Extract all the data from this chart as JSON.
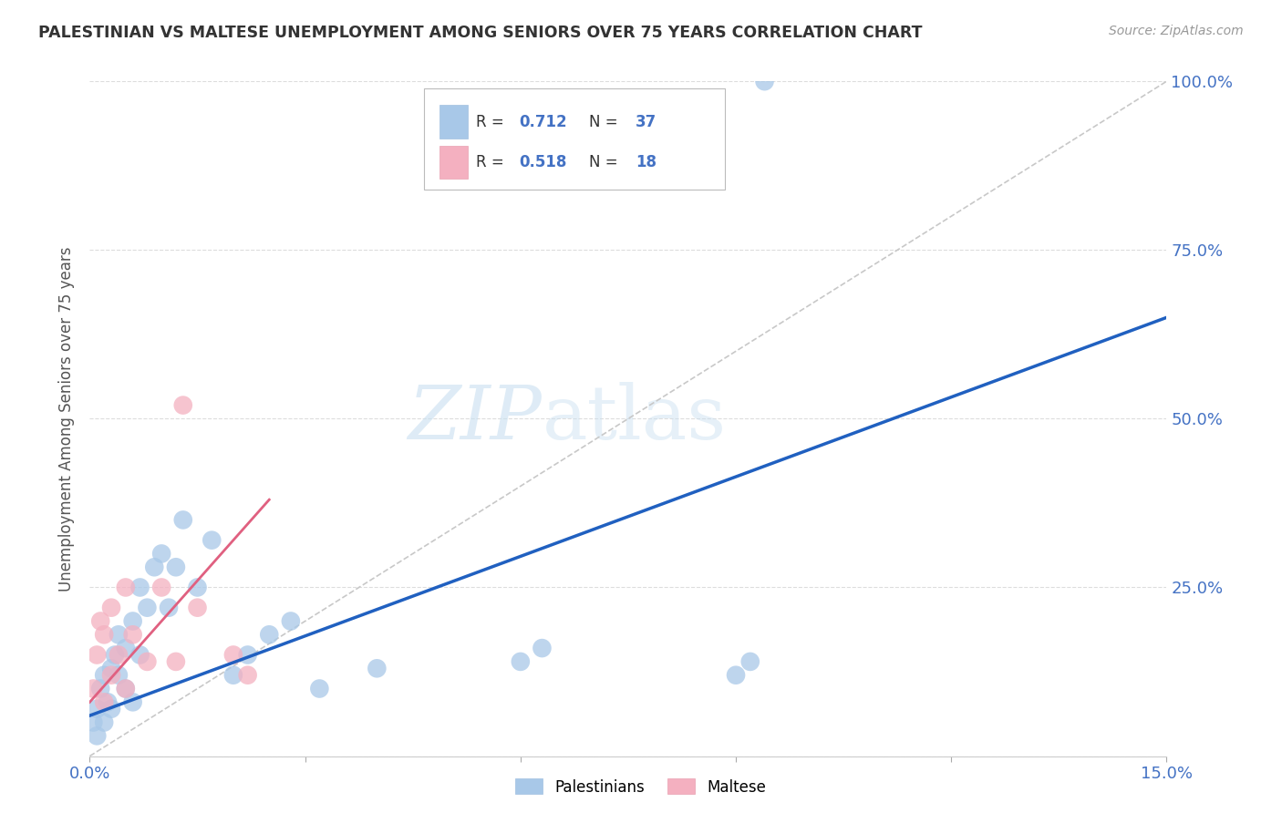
{
  "title": "PALESTINIAN VS MALTESE UNEMPLOYMENT AMONG SENIORS OVER 75 YEARS CORRELATION CHART",
  "source": "Source: ZipAtlas.com",
  "ylabel": "Unemployment Among Seniors over 75 years",
  "xlim": [
    0.0,
    0.15
  ],
  "ylim": [
    0.0,
    1.0
  ],
  "xticks": [
    0.0,
    0.03,
    0.06,
    0.09,
    0.12,
    0.15
  ],
  "xtick_labels": [
    "0.0%",
    "",
    "",
    "",
    "",
    "15.0%"
  ],
  "yticks_right": [
    0.0,
    0.25,
    0.5,
    0.75,
    1.0
  ],
  "ytick_labels_right": [
    "",
    "25.0%",
    "50.0%",
    "75.0%",
    "100.0%"
  ],
  "palestinian_color": "#a8c8e8",
  "maltese_color": "#f4b0c0",
  "line_blue_color": "#2060c0",
  "line_pink_color": "#e06080",
  "diagonal_color": "#c8c8c8",
  "background": "#ffffff",
  "legend_R_pal": "0.712",
  "legend_N_pal": "37",
  "legend_R_mal": "0.518",
  "legend_N_mal": "18",
  "palestinian_x": [
    0.0005,
    0.001,
    0.001,
    0.0015,
    0.002,
    0.002,
    0.0025,
    0.003,
    0.003,
    0.0035,
    0.004,
    0.004,
    0.005,
    0.005,
    0.006,
    0.006,
    0.007,
    0.007,
    0.008,
    0.009,
    0.01,
    0.011,
    0.012,
    0.013,
    0.015,
    0.017,
    0.02,
    0.022,
    0.025,
    0.028,
    0.032,
    0.04,
    0.06,
    0.063,
    0.09,
    0.092,
    0.094
  ],
  "palestinian_y": [
    0.05,
    0.03,
    0.07,
    0.1,
    0.05,
    0.12,
    0.08,
    0.13,
    0.07,
    0.15,
    0.12,
    0.18,
    0.1,
    0.16,
    0.2,
    0.08,
    0.25,
    0.15,
    0.22,
    0.28,
    0.3,
    0.22,
    0.28,
    0.35,
    0.25,
    0.32,
    0.12,
    0.15,
    0.18,
    0.2,
    0.1,
    0.13,
    0.14,
    0.16,
    0.12,
    0.14,
    1.0
  ],
  "maltese_x": [
    0.0005,
    0.001,
    0.0015,
    0.002,
    0.002,
    0.003,
    0.003,
    0.004,
    0.005,
    0.005,
    0.006,
    0.008,
    0.01,
    0.012,
    0.013,
    0.015,
    0.02,
    0.022
  ],
  "maltese_y": [
    0.1,
    0.15,
    0.2,
    0.08,
    0.18,
    0.22,
    0.12,
    0.15,
    0.1,
    0.25,
    0.18,
    0.14,
    0.25,
    0.14,
    0.52,
    0.22,
    0.15,
    0.12
  ],
  "pal_line_x": [
    0.0,
    0.15
  ],
  "pal_line_y": [
    0.06,
    0.65
  ],
  "mal_line_x": [
    0.0,
    0.025
  ],
  "mal_line_y": [
    0.08,
    0.38
  ]
}
